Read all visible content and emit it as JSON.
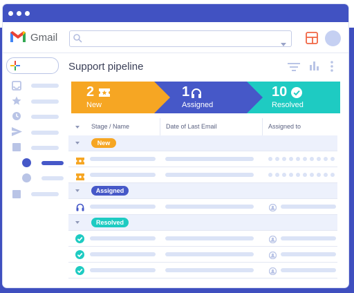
{
  "app": {
    "name": "Gmail"
  },
  "page": {
    "title": "Support pipeline"
  },
  "colors": {
    "new": "#f6a623",
    "assigned": "#4658c8",
    "resolved": "#1ecbc2",
    "chrome": "#4152c2",
    "placeholder_bar": "#dbe3f6"
  },
  "icons": {
    "logo": "gmail-logo",
    "search": "search-icon",
    "dropdown": "chevron-down-icon",
    "layout": "layout-icon",
    "compose": "compose-plus-icon",
    "sidebar": [
      "inbox-icon",
      "star-icon",
      "clock-icon",
      "send-icon",
      "label-icon"
    ],
    "toolbar": [
      "filter-icon",
      "bar-chart-icon",
      "more-vert-icon"
    ],
    "stages": [
      "ticket-icon",
      "headset-icon",
      "check-circle-icon"
    ]
  },
  "stages": [
    {
      "count": "2",
      "label": "New"
    },
    {
      "count": "1",
      "label": "Assigned"
    },
    {
      "count": "10",
      "label": "Resolved"
    }
  ],
  "table": {
    "columns": [
      "Stage / Name",
      "Date of Last Email",
      "Assigned to"
    ],
    "groups": [
      {
        "label": "New",
        "row_count": 2
      },
      {
        "label": "Assigned",
        "row_count": 1
      },
      {
        "label": "Resolved",
        "row_count": 3
      }
    ]
  }
}
